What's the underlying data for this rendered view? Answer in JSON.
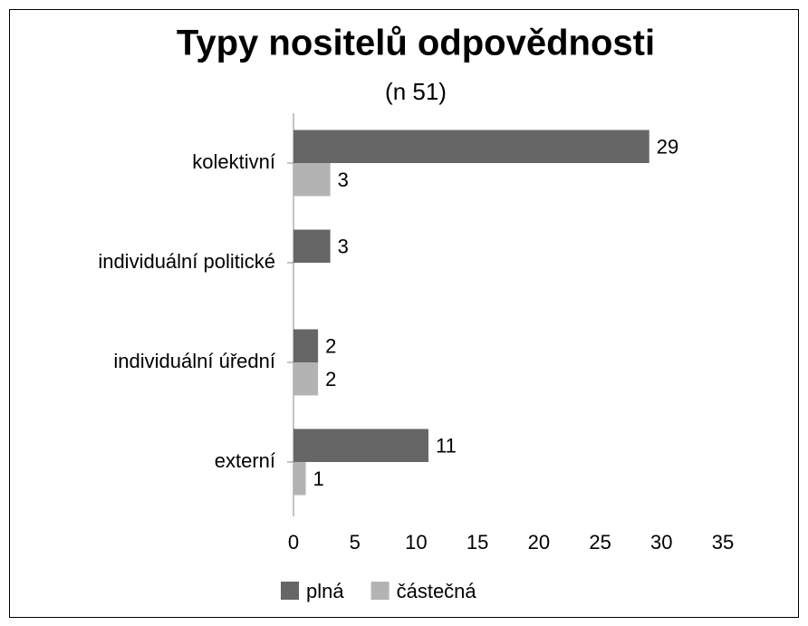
{
  "chart_data": {
    "type": "barh",
    "title": "Typy nositelů odpovědnosti",
    "subtitle": "(n 51)",
    "categories": [
      "kolektivní",
      "individuální politické",
      "individuální úřední",
      "externí"
    ],
    "series": [
      {
        "name": "plná",
        "color": "#666666",
        "values": [
          29,
          3,
          2,
          11
        ]
      },
      {
        "name": "částečná",
        "color": "#b3b3b3",
        "values": [
          3,
          null,
          2,
          1
        ]
      }
    ],
    "xlim": [
      0,
      35
    ],
    "xticks": [
      0,
      5,
      10,
      15,
      20,
      25,
      30,
      35
    ],
    "legend": "bottom"
  }
}
